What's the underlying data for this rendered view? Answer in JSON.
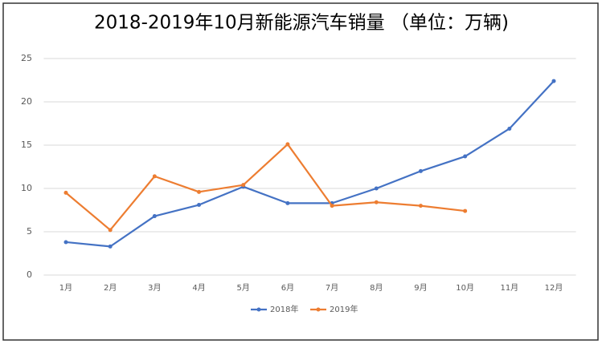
{
  "chart_data": {
    "type": "line",
    "title": "2018-2019年10月新能源汽车销量 （单位：万辆)",
    "categories": [
      "1月",
      "2月",
      "3月",
      "4月",
      "5月",
      "6月",
      "7月",
      "8月",
      "9月",
      "10月",
      "11月",
      "12月"
    ],
    "series": [
      {
        "name": "2018年",
        "color": "#4472c4",
        "values": [
          3.8,
          3.3,
          6.8,
          8.1,
          10.2,
          8.3,
          8.3,
          10.0,
          12.0,
          13.7,
          16.9,
          22.4
        ]
      },
      {
        "name": "2019年",
        "color": "#ed7d31",
        "values": [
          9.5,
          5.2,
          11.4,
          9.6,
          10.4,
          15.1,
          8.0,
          8.4,
          8.0,
          7.4,
          null,
          null
        ]
      }
    ],
    "ylim": [
      0,
      25
    ],
    "yticks": [
      0,
      5,
      10,
      15,
      20,
      25
    ],
    "grid": true,
    "legend": "bottom"
  }
}
